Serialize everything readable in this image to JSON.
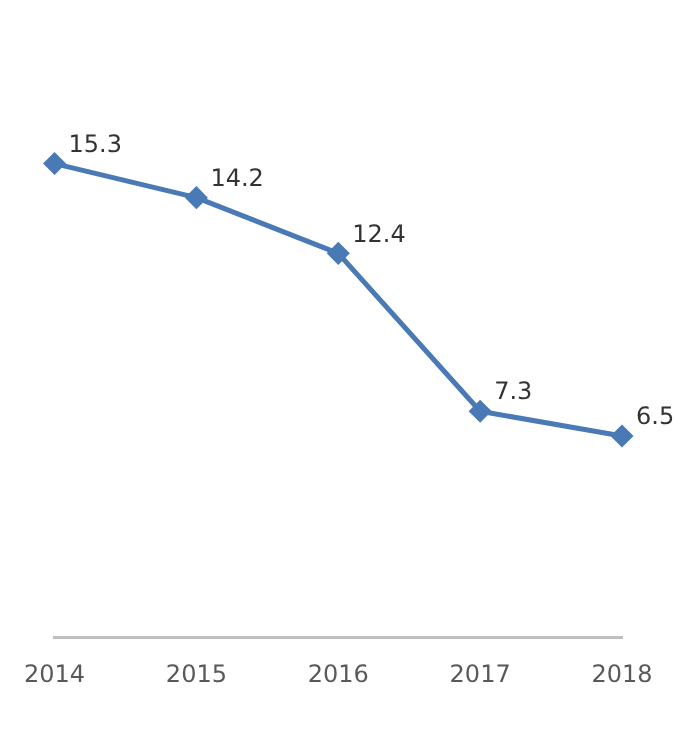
{
  "chart_data": {
    "type": "line",
    "categories": [
      "2014",
      "2015",
      "2016",
      "2017",
      "2018"
    ],
    "values": [
      15.3,
      14.2,
      12.4,
      7.3,
      6.5
    ],
    "color": "#4a7ab5",
    "marker": "diamond",
    "data_labels": true,
    "grid": false,
    "legend": false
  }
}
